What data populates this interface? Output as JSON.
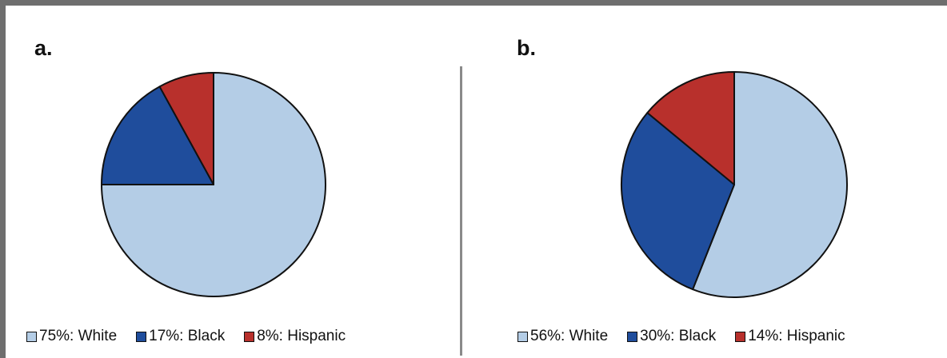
{
  "chart_data": [
    {
      "type": "pie",
      "panel_label": "a.",
      "slices": [
        {
          "value": 75,
          "legend": "75%: White",
          "color": "#b4cde6"
        },
        {
          "value": 17,
          "legend": "17%: Black",
          "color": "#1f4d9c"
        },
        {
          "value": 8,
          "legend": "8%: Hispanic",
          "color": "#b8302c"
        }
      ],
      "legend_position": "bottom"
    },
    {
      "type": "pie",
      "panel_label": "b.",
      "slices": [
        {
          "value": 56,
          "legend": "56%: White",
          "color": "#b4cde6"
        },
        {
          "value": 30,
          "legend": "30%: Black",
          "color": "#1f4d9c"
        },
        {
          "value": 14,
          "legend": "14%: Hispanic",
          "color": "#b8302c"
        }
      ],
      "legend_position": "bottom"
    }
  ]
}
